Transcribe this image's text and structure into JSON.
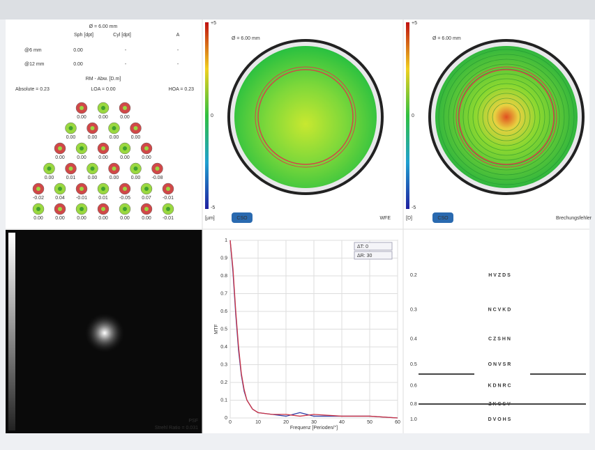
{
  "refraction": {
    "diameter": "Ø = 6.00 mm",
    "columns": [
      "Sph [dpt]",
      "Cyl [dpt]",
      "A"
    ],
    "rows": [
      [
        "@6 mm",
        "0.00",
        "-",
        "-"
      ],
      [
        "@12 mm",
        "0.00",
        "-",
        "-"
      ]
    ],
    "rms_title": "RM - Abw. [D.m]",
    "absolute": "Absolute = 0.23",
    "loa": "LOA = 0.00",
    "hoa": "HOA = 0.23"
  },
  "zernike": [
    [
      "0.00",
      "0.00",
      "0.00"
    ],
    [
      "0.00",
      "0.00",
      "0.00",
      "0.00"
    ],
    [
      "0.00",
      "0.00",
      "0.00",
      "0.00",
      "0.00"
    ],
    [
      "0.00",
      "0.01",
      "0.00",
      "0.00",
      "0.00",
      "-0.08"
    ],
    [
      "-0.02",
      "0.04",
      "-0.01",
      "0.01",
      "-0.05",
      "0.07",
      "-0.01"
    ],
    [
      "0.00",
      "0.00",
      "0.00",
      "0.00",
      "0.00",
      "0.00",
      "-0.01"
    ]
  ],
  "wfe_map": {
    "diameter": "Ø = 6.00 mm",
    "scale_top": "+5",
    "scale_mid": "0",
    "scale_bottom": "-5",
    "unit": "[µm]",
    "logo": "CSO",
    "label": "WFE"
  },
  "refraction_map": {
    "diameter": "Ø = 6.00 mm",
    "scale_top": "+5",
    "scale_mid": "0",
    "scale_bottom": "-5",
    "unit": "[D]",
    "logo": "CSO",
    "label": "Brechungsfehler"
  },
  "psf": {
    "label": "PSF",
    "strehl": "Strehl Ratio = 0.031"
  },
  "mtf": {
    "x_label": "Frequenz [Perioden/°]",
    "y_label": "MTF",
    "xlim": [
      0,
      60
    ],
    "ylim": [
      0,
      1
    ],
    "xticks": [
      0,
      10,
      20,
      30,
      40,
      50,
      60
    ],
    "yticks": [
      0,
      0.1,
      0.2,
      0.3,
      0.4,
      0.5,
      0.6,
      0.7,
      0.8,
      0.9,
      1
    ],
    "x": [
      0,
      1,
      2,
      3,
      4,
      5,
      6,
      8,
      10,
      15,
      20,
      25,
      30,
      40,
      50,
      60
    ],
    "series": [
      {
        "name": "ΔT: 0",
        "color": "#3344aa",
        "values": [
          1,
          0.82,
          0.58,
          0.38,
          0.24,
          0.15,
          0.1,
          0.05,
          0.03,
          0.02,
          0.01,
          0.03,
          0.01,
          0.01,
          0.01,
          0
        ]
      },
      {
        "name": "ΔR: 30",
        "color": "#cc3344",
        "values": [
          1,
          0.84,
          0.6,
          0.4,
          0.25,
          0.16,
          0.1,
          0.05,
          0.03,
          0.02,
          0.02,
          0.01,
          0.02,
          0.01,
          0.01,
          0
        ]
      }
    ]
  },
  "acuity": {
    "rows": [
      {
        "label": "0.2",
        "letters": "H V Z D S"
      },
      {
        "label": "0.3",
        "letters": "N C V K D"
      },
      {
        "label": "0.4",
        "letters": "C Z S H N"
      },
      {
        "label": "0.5",
        "letters": "O N V S R"
      },
      {
        "label": "0.6",
        "letters": "K D N R C"
      },
      {
        "label": "0.8",
        "letters": "Z K C S V"
      },
      {
        "label": "1.0",
        "letters": "D V O H S"
      }
    ]
  }
}
